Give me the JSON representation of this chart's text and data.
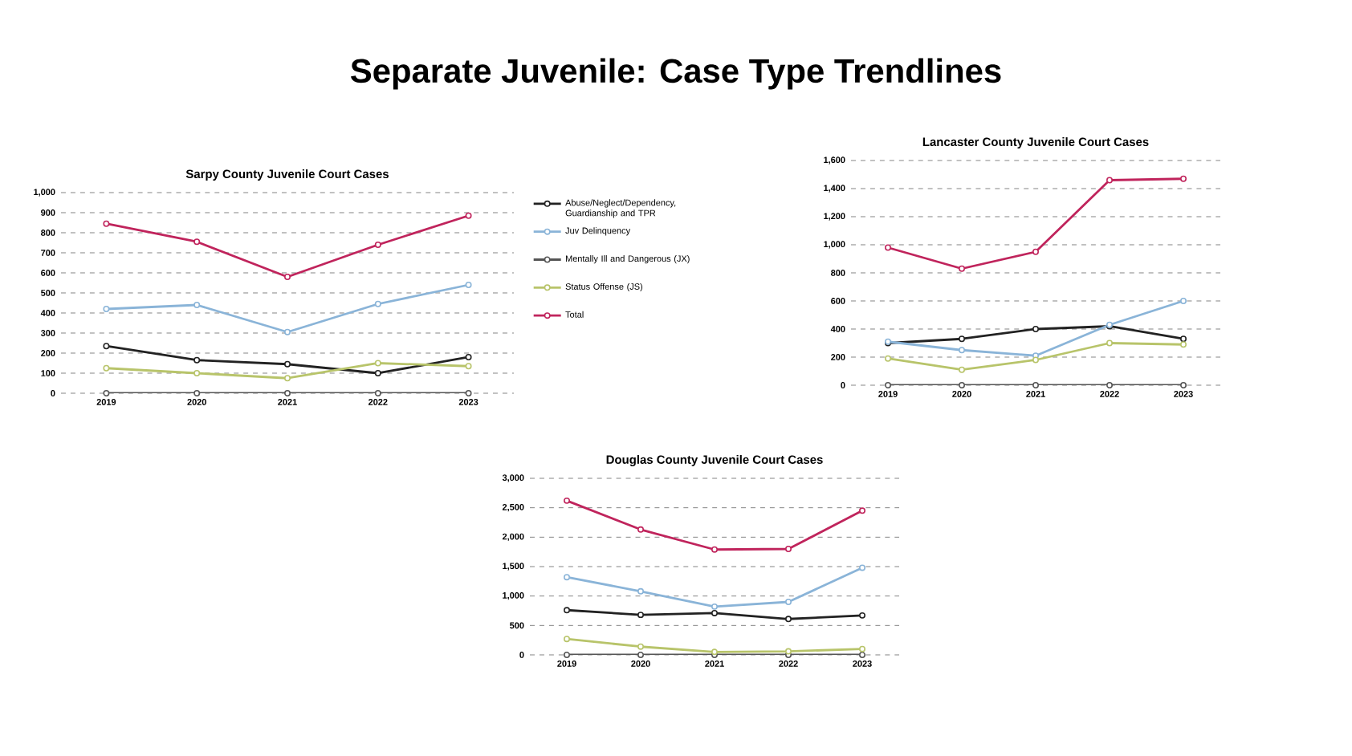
{
  "chart_data": [
    {
      "type": "line",
      "title": "Sarpy County Juvenile Court Cases",
      "annotations": [
        "Separate Juvenile: Case Type Trendlines"
      ],
      "categories": [
        "2019",
        "2020",
        "2021",
        "2022",
        "2023"
      ],
      "series": [
        {
          "name": "Abuse/Neglect/Dependency, Guardianship and TPR",
          "color": "#222222",
          "values": [
            235,
            165,
            145,
            100,
            180
          ]
        },
        {
          "name": "Juv Delinquency",
          "color": "#8ab4d8",
          "values": [
            420,
            440,
            305,
            445,
            540
          ]
        },
        {
          "name": "Mentally Ill and Dangerous (JX)",
          "color": "#555555",
          "values": [
            0,
            0,
            0,
            0,
            0
          ]
        },
        {
          "name": "Status Offense (JS)",
          "color": "#b8c46a",
          "values": [
            125,
            100,
            75,
            150,
            135
          ]
        },
        {
          "name": "Total",
          "color": "#c0245c",
          "values": [
            845,
            755,
            580,
            740,
            885
          ]
        }
      ],
      "ylim": [
        0,
        1000
      ],
      "yticks": [
        0,
        100,
        200,
        300,
        400,
        500,
        600,
        700,
        800,
        900,
        {
          "value": 1000,
          "label": "1,000"
        }
      ],
      "grid": "y",
      "legend": "right",
      "marker": "circle",
      "line_style": "solid"
    },
    {
      "type": "line",
      "title": "Lancaster County Juvenile Court Cases",
      "categories": [
        "2019",
        "2020",
        "2021",
        "2022",
        "2023"
      ],
      "series": [
        {
          "color": "#222222",
          "values": [
            300,
            330,
            400,
            420,
            330
          ]
        },
        {
          "color": "#8ab4d8",
          "values": [
            310,
            250,
            210,
            430,
            600
          ]
        },
        {
          "color": "#555555",
          "values": [
            0,
            0,
            0,
            0,
            0
          ]
        },
        {
          "color": "#b8c46a",
          "values": [
            190,
            110,
            180,
            300,
            290
          ]
        },
        {
          "color": "#c0245c",
          "values": [
            980,
            830,
            950,
            1460,
            1470
          ]
        }
      ],
      "ylim": [
        0,
        1600
      ],
      "yticks": [
        0,
        200,
        400,
        600,
        800,
        {
          "value": 1000,
          "label": "1,000"
        },
        {
          "value": 1200,
          "label": "1,200"
        },
        {
          "value": 1400,
          "label": "1,400"
        },
        {
          "value": 1600,
          "label": "1,600"
        }
      ],
      "grid": "y",
      "marker": "circle",
      "line_style": "solid"
    },
    {
      "type": "line",
      "title": "Douglas County Juvenile Court Cases",
      "categories": [
        "2019",
        "2020",
        "2021",
        "2022",
        "2023"
      ],
      "series": [
        {
          "color": "#222222",
          "values": [
            760,
            680,
            710,
            610,
            670
          ]
        },
        {
          "color": "#8ab4d8",
          "values": [
            1320,
            1080,
            820,
            900,
            1480
          ]
        },
        {
          "color": "#555555",
          "values": [
            0,
            0,
            0,
            0,
            0
          ]
        },
        {
          "color": "#b8c46a",
          "values": [
            270,
            140,
            50,
            60,
            100
          ]
        },
        {
          "color": "#c0245c",
          "values": [
            2620,
            2130,
            1790,
            1800,
            2450
          ]
        }
      ],
      "ylim": [
        0,
        3000
      ],
      "yticks": [
        0,
        500,
        {
          "value": 1000,
          "label": "1,000"
        },
        {
          "value": 1500,
          "label": "1,500"
        },
        {
          "value": 2000,
          "label": "2,000"
        },
        {
          "value": 2500,
          "label": "2,500"
        },
        {
          "value": 3000,
          "label": "3,000"
        }
      ],
      "grid": "y",
      "marker": "circle",
      "line_style": "solid"
    }
  ]
}
